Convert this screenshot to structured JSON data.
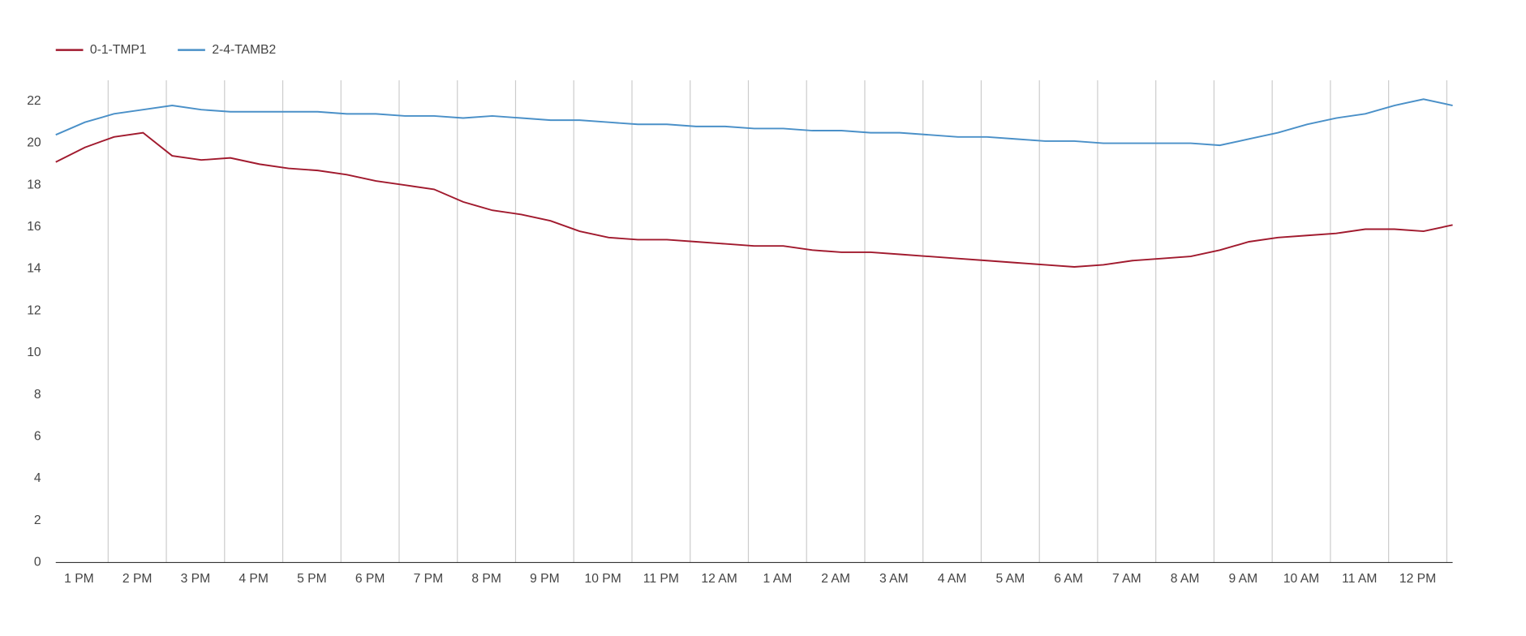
{
  "chart_data": {
    "type": "line",
    "x": [
      12.6,
      13.1,
      13.6,
      14.1,
      14.6,
      15.1,
      15.6,
      16.1,
      16.6,
      17.1,
      17.6,
      18.1,
      18.6,
      19.1,
      19.6,
      20.1,
      20.6,
      21.1,
      21.6,
      22.1,
      22.6,
      23.1,
      23.6,
      24.1,
      24.6,
      25.1,
      25.6,
      26.1,
      26.6,
      27.1,
      27.6,
      28.1,
      28.6,
      29.1,
      29.6,
      30.1,
      30.6,
      31.1,
      31.6,
      32.1,
      32.6,
      33.1,
      33.6,
      34.1,
      34.6,
      35.1,
      35.6,
      36.1,
      36.6
    ],
    "series": [
      {
        "name": "0-1-TMP1",
        "color": "#a11a2e",
        "values": [
          19.1,
          19.8,
          20.3,
          20.5,
          19.4,
          19.2,
          19.3,
          19.0,
          18.8,
          18.7,
          18.5,
          18.2,
          18.0,
          17.8,
          17.2,
          16.8,
          16.6,
          16.3,
          15.8,
          15.5,
          15.4,
          15.4,
          15.3,
          15.2,
          15.1,
          15.1,
          14.9,
          14.8,
          14.8,
          14.7,
          14.6,
          14.5,
          14.4,
          14.3,
          14.2,
          14.1,
          14.2,
          14.4,
          14.5,
          14.6,
          14.9,
          15.3,
          15.5,
          15.6,
          15.7,
          15.9,
          15.9,
          15.8,
          16.1
        ]
      },
      {
        "name": "2-4-TAMB2",
        "color": "#4a90c8",
        "values": [
          20.4,
          21.0,
          21.4,
          21.6,
          21.8,
          21.6,
          21.5,
          21.5,
          21.5,
          21.5,
          21.4,
          21.4,
          21.3,
          21.3,
          21.2,
          21.3,
          21.2,
          21.1,
          21.1,
          21.0,
          20.9,
          20.9,
          20.8,
          20.8,
          20.7,
          20.7,
          20.6,
          20.6,
          20.5,
          20.5,
          20.4,
          20.3,
          20.3,
          20.2,
          20.1,
          20.1,
          20.0,
          20.0,
          20.0,
          20.0,
          19.9,
          20.2,
          20.5,
          20.9,
          21.2,
          21.4,
          21.8,
          22.1,
          21.8
        ]
      }
    ],
    "xlim": [
      12.6,
      36.6
    ],
    "xticks": [
      {
        "value": 13,
        "label": "1 PM"
      },
      {
        "value": 14,
        "label": "2 PM"
      },
      {
        "value": 15,
        "label": "3 PM"
      },
      {
        "value": 16,
        "label": "4 PM"
      },
      {
        "value": 17,
        "label": "5 PM"
      },
      {
        "value": 18,
        "label": "6 PM"
      },
      {
        "value": 19,
        "label": "7 PM"
      },
      {
        "value": 20,
        "label": "8 PM"
      },
      {
        "value": 21,
        "label": "9 PM"
      },
      {
        "value": 22,
        "label": "10 PM"
      },
      {
        "value": 23,
        "label": "11 PM"
      },
      {
        "value": 24,
        "label": "12 AM"
      },
      {
        "value": 25,
        "label": "1 AM"
      },
      {
        "value": 26,
        "label": "2 AM"
      },
      {
        "value": 27,
        "label": "3 AM"
      },
      {
        "value": 28,
        "label": "4 AM"
      },
      {
        "value": 29,
        "label": "5 AM"
      },
      {
        "value": 30,
        "label": "6 AM"
      },
      {
        "value": 31,
        "label": "7 AM"
      },
      {
        "value": 32,
        "label": "8 AM"
      },
      {
        "value": 33,
        "label": "9 AM"
      },
      {
        "value": 34,
        "label": "10 AM"
      },
      {
        "value": 35,
        "label": "11 AM"
      },
      {
        "value": 36,
        "label": "12 PM"
      }
    ],
    "xgridlines": [
      13.5,
      14.5,
      15.5,
      16.5,
      17.5,
      18.5,
      19.5,
      20.5,
      21.5,
      22.5,
      23.5,
      24.5,
      25.5,
      26.5,
      27.5,
      28.5,
      29.5,
      30.5,
      31.5,
      32.5,
      33.5,
      34.5,
      35.5,
      36.5
    ],
    "ylim": [
      0,
      23
    ],
    "yticks": [
      0,
      2,
      4,
      6,
      8,
      10,
      12,
      14,
      16,
      18,
      20,
      22
    ],
    "legend": "top-left"
  }
}
